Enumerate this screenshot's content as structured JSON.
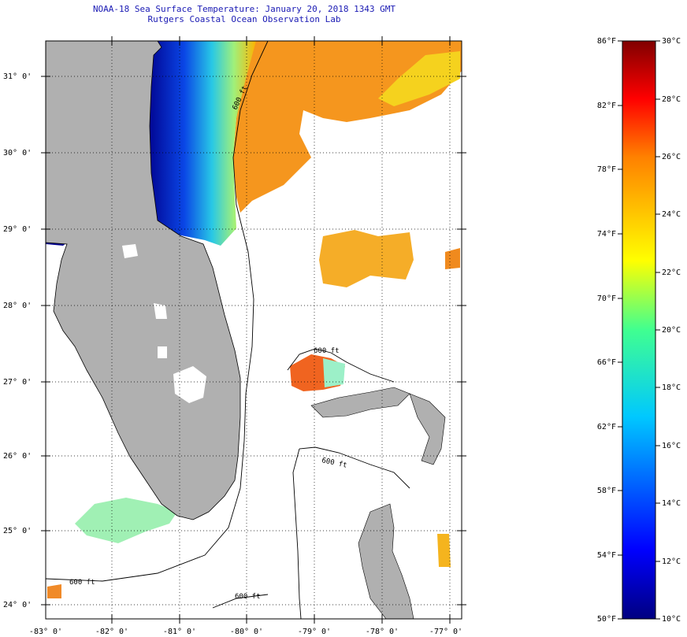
{
  "title": {
    "line1": "NOAA-18 Sea Surface Temperature:  January 20, 2018 1343 GMT",
    "line2": "Rutgers Coastal Ocean Observation Lab"
  },
  "map": {
    "lat_labels": [
      "31° 0'",
      "30° 0'",
      "29° 0'",
      "28° 0'",
      "27° 0'",
      "26° 0'",
      "25° 0'",
      "24° 0'"
    ],
    "lon_labels": [
      "-83° 0'",
      "-82° 0'",
      "-81° 0'",
      "-80° 0'",
      "-79° 0'",
      "-78° 0'",
      "-77° 0'"
    ],
    "contour_labels": [
      "600 ft",
      "600 ft",
      "600 ft",
      "600 ft",
      "600 ft"
    ],
    "land_color": "#b0b0b0",
    "cloud_color": "#ffffff"
  },
  "colorbar": {
    "f_labels": [
      "86°F",
      "82°F",
      "78°F",
      "74°F",
      "70°F",
      "66°F",
      "62°F",
      "58°F",
      "54°F",
      "50°F"
    ],
    "c_labels": [
      "30°C",
      "28°C",
      "26°C",
      "24°C",
      "22°C",
      "20°C",
      "18°C",
      "16°C",
      "14°C",
      "12°C",
      "10°C"
    ],
    "min_f": 50,
    "max_f": 86,
    "min_c": 10,
    "max_c": 30
  }
}
